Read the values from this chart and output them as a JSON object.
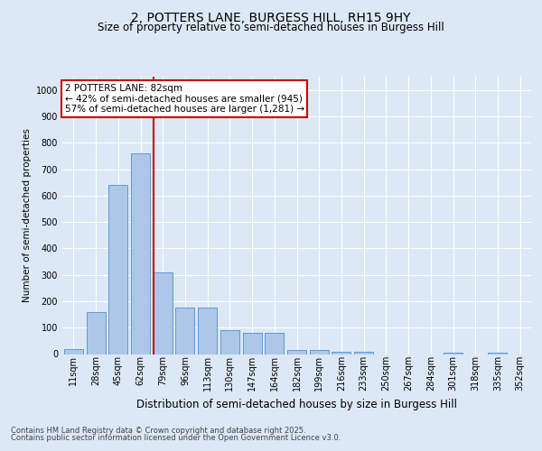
{
  "title1": "2, POTTERS LANE, BURGESS HILL, RH15 9HY",
  "title2": "Size of property relative to semi-detached houses in Burgess Hill",
  "xlabel": "Distribution of semi-detached houses by size in Burgess Hill",
  "ylabel": "Number of semi-detached properties",
  "categories": [
    "11sqm",
    "28sqm",
    "45sqm",
    "62sqm",
    "79sqm",
    "96sqm",
    "113sqm",
    "130sqm",
    "147sqm",
    "164sqm",
    "182sqm",
    "199sqm",
    "216sqm",
    "233sqm",
    "250sqm",
    "267sqm",
    "284sqm",
    "301sqm",
    "318sqm",
    "335sqm",
    "352sqm"
  ],
  "values": [
    20,
    160,
    640,
    760,
    310,
    175,
    175,
    90,
    80,
    80,
    15,
    15,
    10,
    10,
    0,
    0,
    0,
    5,
    0,
    5,
    0
  ],
  "bar_color": "#aec6e8",
  "bar_edge_color": "#5b9bd5",
  "vline_color": "#cc0000",
  "vline_x": 3.575,
  "annotation_title": "2 POTTERS LANE: 82sqm",
  "annotation_line1": "← 42% of semi-detached houses are smaller (945)",
  "annotation_line2": "57% of semi-detached houses are larger (1,281) →",
  "annotation_box_color": "#cc0000",
  "ylim": [
    0,
    1050
  ],
  "yticks": [
    0,
    100,
    200,
    300,
    400,
    500,
    600,
    700,
    800,
    900,
    1000
  ],
  "footer1": "Contains HM Land Registry data © Crown copyright and database right 2025.",
  "footer2": "Contains public sector information licensed under the Open Government Licence v3.0.",
  "bg_color": "#dce8f5",
  "plot_bg_color": "#dce8f5",
  "grid_color": "#ffffff",
  "title_fontsize": 10,
  "subtitle_fontsize": 8.5,
  "ylabel_fontsize": 7.5,
  "xlabel_fontsize": 8.5,
  "tick_fontsize": 7,
  "footer_fontsize": 6
}
